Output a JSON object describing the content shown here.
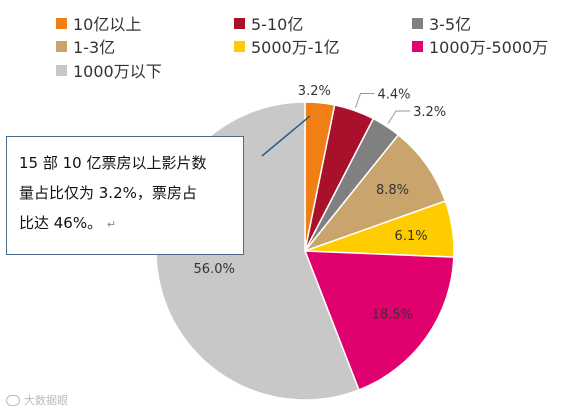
{
  "chart_data": {
    "type": "pie",
    "categories": [
      "10亿以上",
      "5-10亿",
      "3-5亿",
      "1-3亿",
      "5000万-1亿",
      "1000万-5000万",
      "1000万以下"
    ],
    "values": [
      3.2,
      4.4,
      3.2,
      8.8,
      6.1,
      18.5,
      56.0
    ],
    "data_labels": [
      "3.2%",
      "4.4%",
      "3.2%",
      "8.8%",
      "6.1%",
      "18.5%",
      "56.0%"
    ],
    "colors": [
      "#f07f16",
      "#a8102c",
      "#808080",
      "#c9a46c",
      "#ffcc00",
      "#e0006e",
      "#c8c8c8"
    ],
    "start_angle_deg": 0,
    "direction": "clockwise",
    "legend_position": "top"
  },
  "annotation": {
    "lines": [
      "15 部 10 亿票房以上影片数",
      "量占比仅为 3.2%，票房占",
      "比达 46%。"
    ],
    "return_mark": "↵"
  },
  "watermark": {
    "text": "大数据眼"
  }
}
